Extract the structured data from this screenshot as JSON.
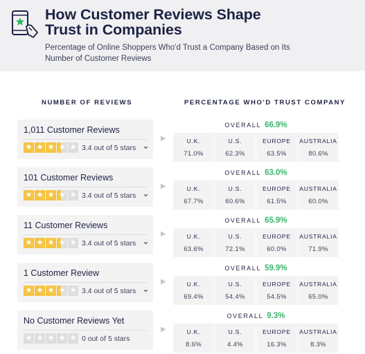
{
  "header": {
    "title_line1": "How Customer Reviews Shape",
    "title_line2": "Trust in Companies",
    "subtitle_line1": "Percentage of Online Shoppers Who'd Trust a Company Based on Its",
    "subtitle_line2": "Number of Customer Reviews"
  },
  "columns": {
    "left": "NUMBER OF REVIEWS",
    "right": "PERCENTAGE WHO'D TRUST COMPANY"
  },
  "colors": {
    "star_filled": "#f6c443",
    "star_empty": "#dededf",
    "overall_green": "#38b76b",
    "navy": "#1d2244"
  },
  "rows": [
    {
      "review_label": "1,011 Customer Reviews",
      "rating_text": "3.4 out of 5 stars",
      "show_chevron": true,
      "stars_filled": 3.4,
      "overall_label": "OVERALL",
      "overall_value": "66.9%",
      "countries": [
        {
          "name": "U.K.",
          "value": "71.0%"
        },
        {
          "name": "U.S.",
          "value": "62.3%"
        },
        {
          "name": "EUROPE",
          "value": "63.5%"
        },
        {
          "name": "AUSTRALIA",
          "value": "80.6%"
        }
      ]
    },
    {
      "review_label": "101 Customer Reviews",
      "rating_text": "3.4 out of 5 stars",
      "show_chevron": true,
      "stars_filled": 3.4,
      "overall_label": "OVERALL",
      "overall_value": "63.0%",
      "countries": [
        {
          "name": "U.K.",
          "value": "67.7%"
        },
        {
          "name": "U.S.",
          "value": "60.6%"
        },
        {
          "name": "EUROPE",
          "value": "61.5%"
        },
        {
          "name": "AUSTRALIA",
          "value": "60.0%"
        }
      ]
    },
    {
      "review_label": "11 Customer Reviews",
      "rating_text": "3.4 out of 5 stars",
      "show_chevron": true,
      "stars_filled": 3.4,
      "overall_label": "OVERALL",
      "overall_value": "65.9%",
      "countries": [
        {
          "name": "U.K.",
          "value": "63.6%"
        },
        {
          "name": "U.S.",
          "value": "72.1%"
        },
        {
          "name": "EUROPE",
          "value": "60.0%"
        },
        {
          "name": "AUSTRALIA",
          "value": "71.9%"
        }
      ]
    },
    {
      "review_label": "1 Customer Review",
      "rating_text": "3.4 out of 5 stars",
      "show_chevron": true,
      "stars_filled": 3.4,
      "overall_label": "OVERALL",
      "overall_value": "59.9%",
      "countries": [
        {
          "name": "U.K.",
          "value": "69.4%"
        },
        {
          "name": "U.S.",
          "value": "54.4%"
        },
        {
          "name": "EUROPE",
          "value": "54.5%"
        },
        {
          "name": "AUSTRALIA",
          "value": "65.0%"
        }
      ]
    },
    {
      "review_label": "No Customer Reviews Yet",
      "rating_text": "0 out of 5 stars",
      "show_chevron": false,
      "stars_filled": 0,
      "overall_label": "OVERALL",
      "overall_value": "9.3%",
      "countries": [
        {
          "name": "U.K.",
          "value": "8.6%"
        },
        {
          "name": "U.S.",
          "value": "4.4%"
        },
        {
          "name": "EUROPE",
          "value": "16.3%"
        },
        {
          "name": "AUSTRALIA",
          "value": "8.3%"
        }
      ]
    }
  ],
  "chart_data": {
    "type": "table",
    "title": "How Customer Reviews Shape Trust in Companies",
    "subtitle": "Percentage of Online Shoppers Who'd Trust a Company Based on Its Number of Customer Reviews",
    "categories": [
      "1,011 Customer Reviews",
      "101 Customer Reviews",
      "11 Customer Reviews",
      "1 Customer Review",
      "No Customer Reviews Yet"
    ],
    "series": [
      {
        "name": "OVERALL",
        "values": [
          66.9,
          63.0,
          65.9,
          59.9,
          9.3
        ]
      },
      {
        "name": "U.K.",
        "values": [
          71.0,
          67.7,
          63.6,
          69.4,
          8.6
        ]
      },
      {
        "name": "U.S.",
        "values": [
          62.3,
          60.6,
          72.1,
          54.4,
          4.4
        ]
      },
      {
        "name": "EUROPE",
        "values": [
          63.5,
          61.5,
          60.0,
          54.5,
          16.3
        ]
      },
      {
        "name": "AUSTRALIA",
        "values": [
          80.6,
          60.0,
          71.9,
          65.0,
          8.3
        ]
      }
    ],
    "star_ratings": [
      3.4,
      3.4,
      3.4,
      3.4,
      0
    ]
  }
}
